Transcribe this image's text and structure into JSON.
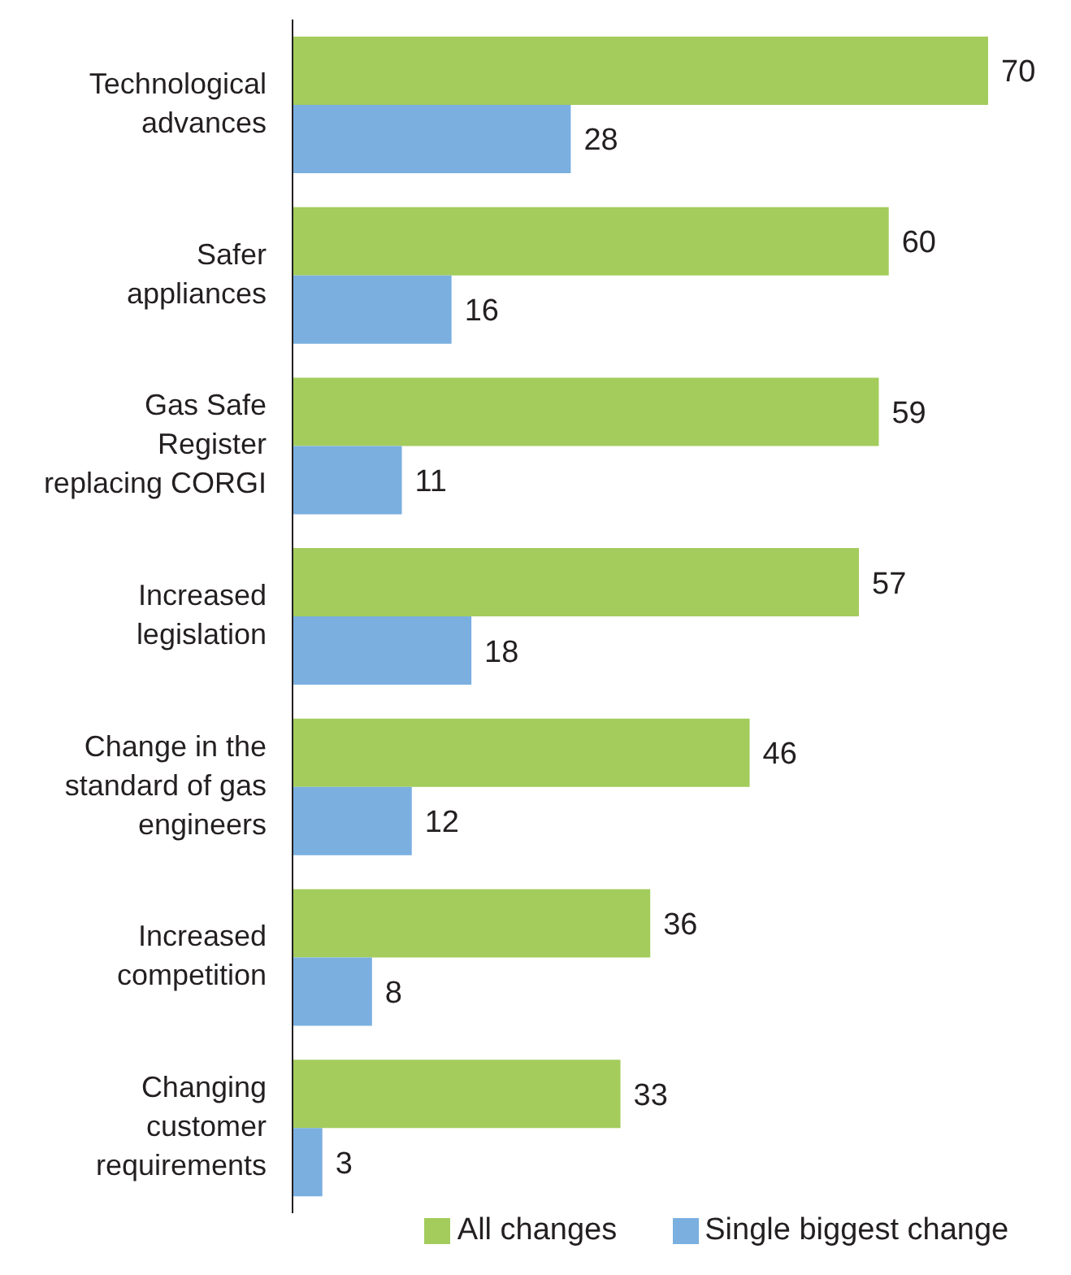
{
  "chart_data": {
    "type": "bar",
    "orientation": "horizontal",
    "categories": [
      "Technological advances",
      "Safer appliances",
      "Gas Safe Register replacing CORGI",
      "Increased legislation",
      "Change in the standard of gas engineers",
      "Increased competition",
      "Changing customer requirements"
    ],
    "series": [
      {
        "name": "All changes",
        "color": "#a3cc5c",
        "values": [
          70,
          60,
          59,
          57,
          46,
          36,
          33
        ]
      },
      {
        "name": "Single biggest change",
        "color": "#7aafe0",
        "values": [
          28,
          16,
          11,
          18,
          12,
          8,
          3
        ]
      }
    ],
    "data_labels": true,
    "legend": "bottom",
    "grid": false
  }
}
